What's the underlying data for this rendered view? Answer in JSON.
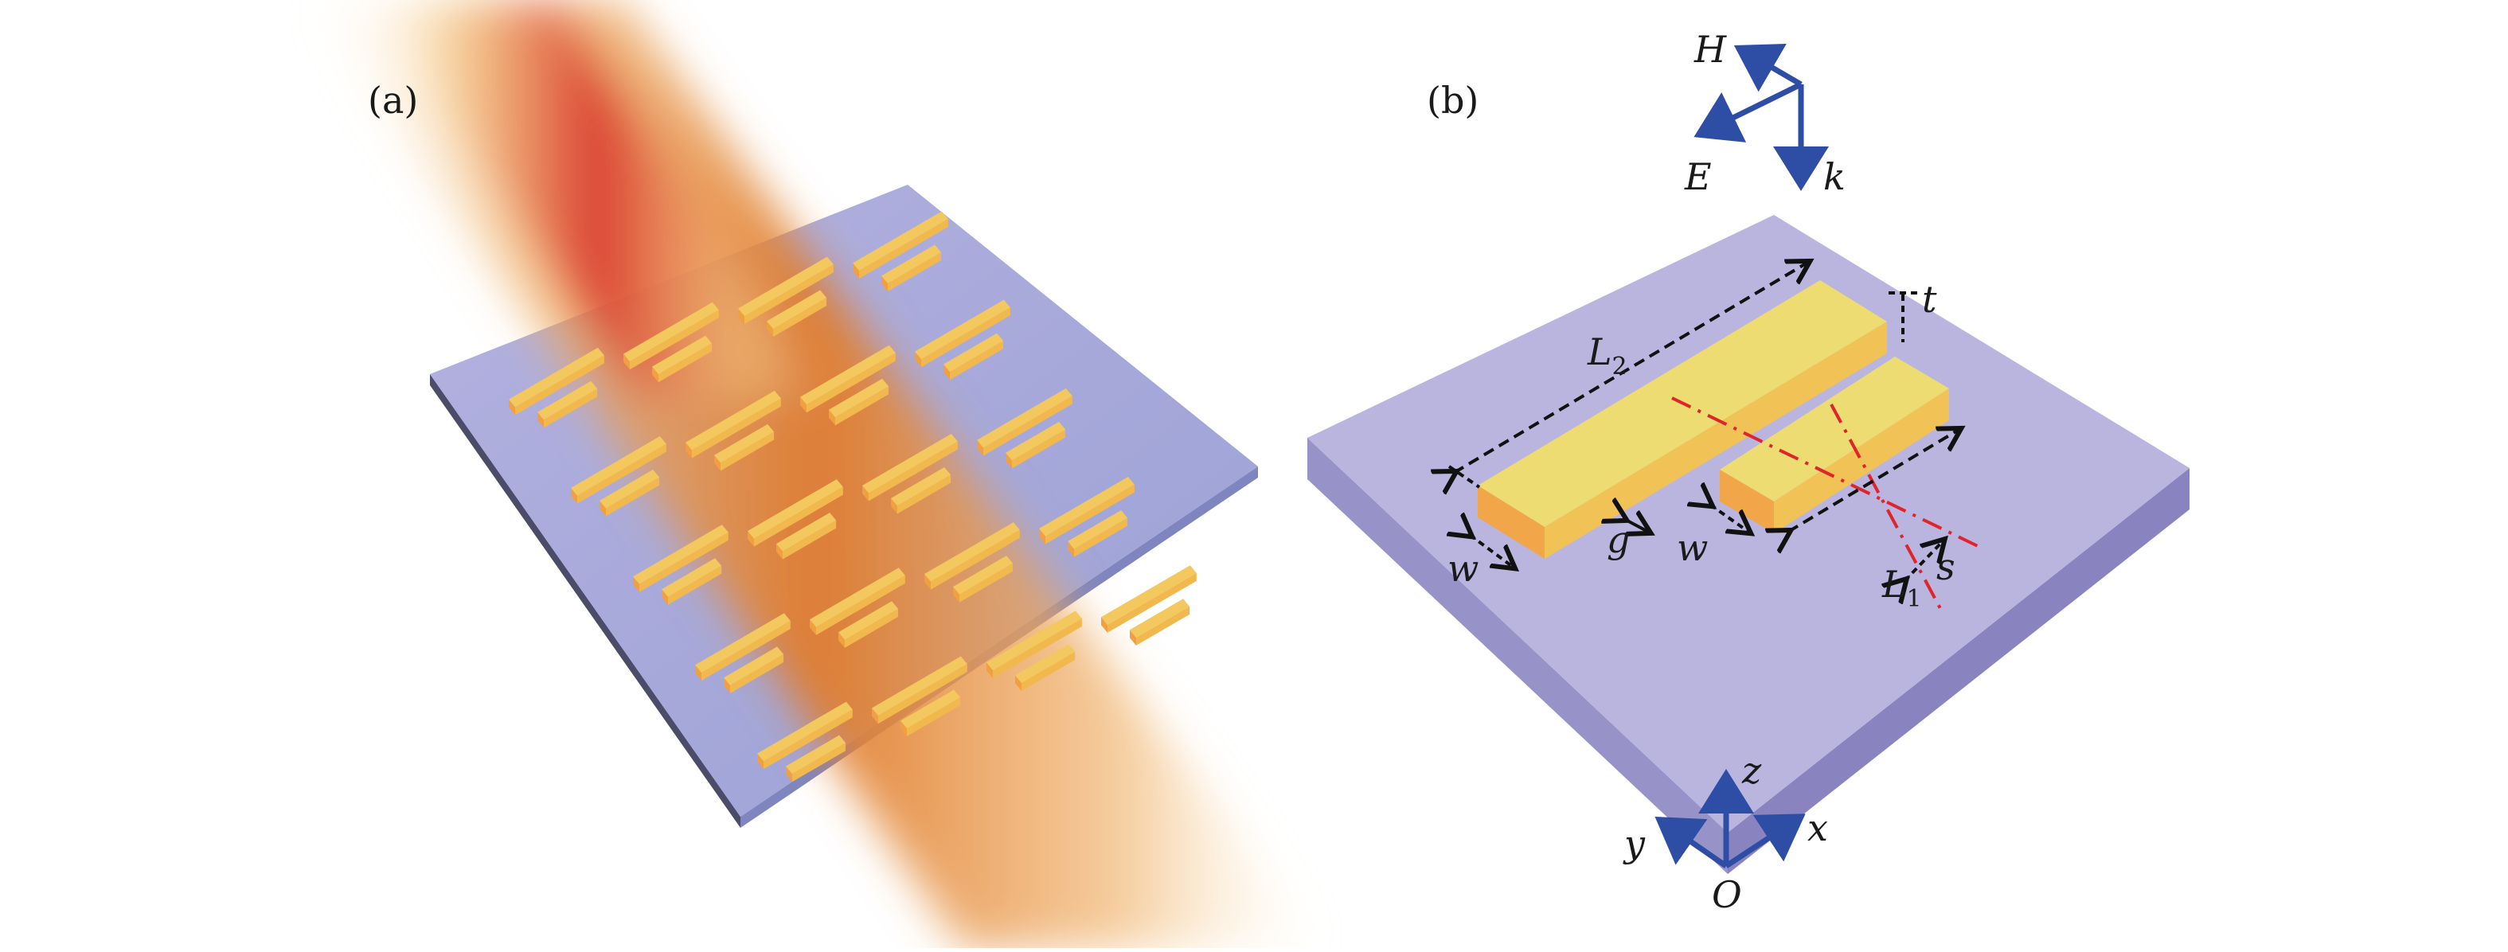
{
  "panel_a": {
    "label": "(a)"
  },
  "panel_b": {
    "label": "(b)",
    "field_labels": {
      "H": "H",
      "E": "E",
      "k": "k"
    },
    "dimensions": {
      "L2_main": "L",
      "L2_sub": "2",
      "L1_main": "L",
      "L1_sub": "1",
      "t": "t",
      "g": "g",
      "w_left": "w",
      "w_mid": "w",
      "s": "s"
    },
    "axes": {
      "x": "x",
      "y": "y",
      "z": "z",
      "origin": "O"
    }
  },
  "colors": {
    "substrate_top": "#aeaadb",
    "substrate_side": "#8f8bc4",
    "gold_top": "#ecd970",
    "gold_side": "#f0a540",
    "beam_core": "#d9352b",
    "beam_outer": "#e07a2a",
    "arrow_blue": "#2e4ea5",
    "axis_red": "#e0242c"
  }
}
